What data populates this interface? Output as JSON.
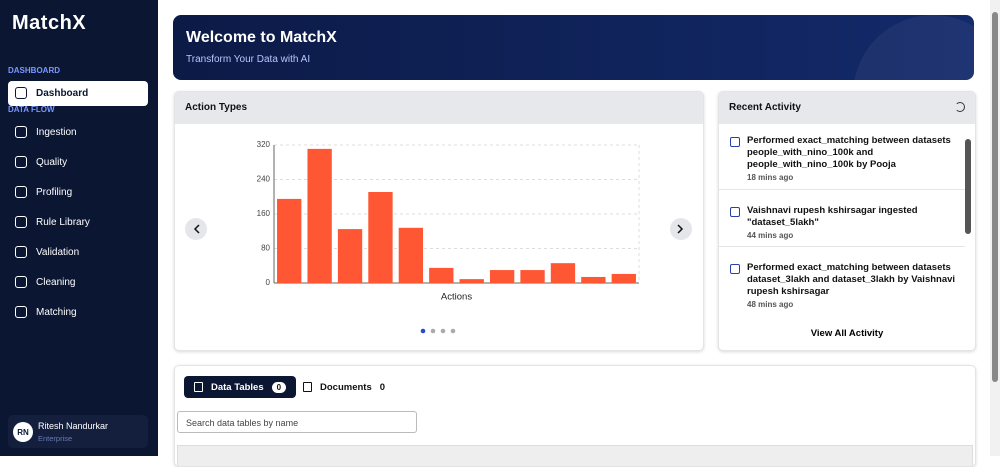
{
  "sidebar": {
    "brand": "MatchX",
    "sections": [
      {
        "title": "DASHBOARD",
        "items": [
          "Dashboard"
        ]
      },
      {
        "title": "DATA FLOW",
        "items": [
          "Ingestion",
          "Quality",
          "Profiling",
          "Rule Library",
          "Validation",
          "Cleaning",
          "Matching"
        ]
      }
    ],
    "user": {
      "initials": "RN",
      "name": "Ritesh Nandurkar",
      "role": "Enterprise"
    }
  },
  "banner": {
    "title": "Welcome to MatchX",
    "subtitle": "Transform Your Data with AI"
  },
  "chart_data": {
    "type": "bar",
    "title": "Action Types",
    "xlabel": "Actions",
    "categories": [
      null,
      null,
      null,
      null,
      null,
      null,
      null,
      null,
      null,
      null,
      null,
      null
    ],
    "values": [
      195,
      311,
      125,
      211,
      128,
      35,
      9,
      30,
      30,
      46,
      14,
      21
    ],
    "color": "#ff5733",
    "ylim": [
      0,
      320
    ],
    "yticks": [
      0,
      80,
      160,
      240,
      320
    ],
    "grid": true
  },
  "activity": {
    "title": "Recent Activity",
    "items": [
      {
        "text": "Performed exact_matching between datasets people_with_nino_100k and people_with_nino_100k by Pooja",
        "time": "18 mins ago"
      },
      {
        "text": "Vaishnavi rupesh kshirsagar ingested \"dataset_5lakh\"",
        "time": "44 mins ago"
      },
      {
        "text": "Performed exact_matching between datasets dataset_3lakh and dataset_3lakh by Vaishnavi rupesh kshirsagar",
        "time": "48 mins ago"
      }
    ],
    "link": "View All Activity"
  },
  "tabs": [
    {
      "label": "Data Tables",
      "count": 0
    },
    {
      "label": "Documents",
      "count": 0
    }
  ],
  "search": {
    "placeholder": "Search data tables by name"
  }
}
